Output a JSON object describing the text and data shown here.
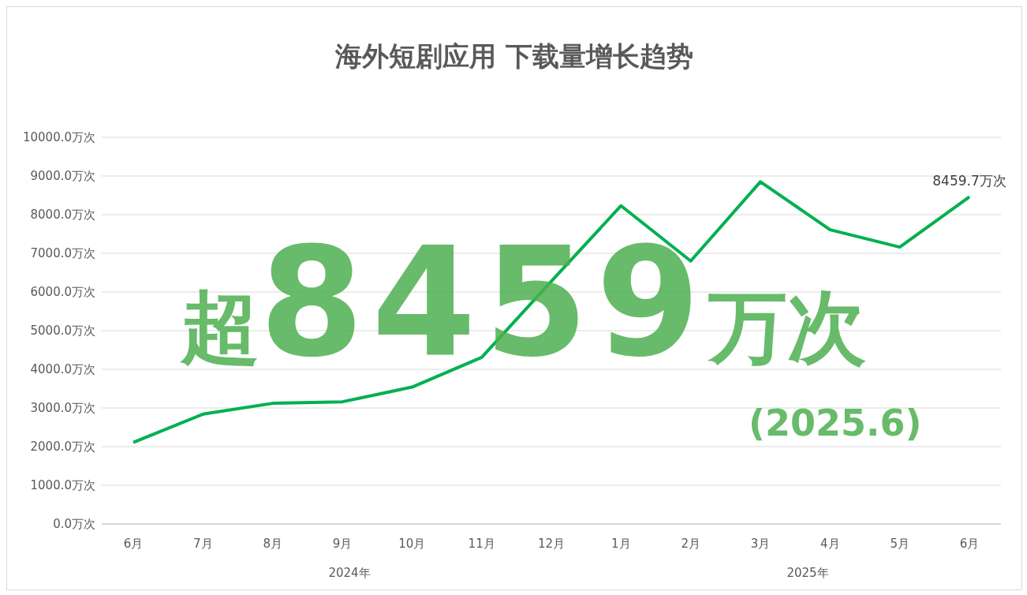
{
  "chart_data": {
    "type": "line",
    "title": "海外短剧应用 下载量增长趋势",
    "categories": [
      "6月",
      "7月",
      "8月",
      "9月",
      "10月",
      "11月",
      "12月",
      "1月",
      "2月",
      "3月",
      "4月",
      "5月",
      "6月"
    ],
    "values": [
      2110,
      2840,
      3120,
      3160,
      3540,
      4310,
      6280,
      8230,
      6800,
      8850,
      7610,
      7160,
      8459.7
    ],
    "value_labels": [
      null,
      null,
      null,
      null,
      null,
      null,
      null,
      null,
      null,
      null,
      null,
      null,
      "8459.7万次"
    ],
    "color": "#00b050",
    "marker": "none",
    "line_style": "solid",
    "grid": "y",
    "legend": false,
    "ylim": [
      0,
      10000
    ],
    "yticks": [
      {
        "value": 0,
        "label": "0.0万次"
      },
      {
        "value": 1000,
        "label": "1000.0万次"
      },
      {
        "value": 2000,
        "label": "2000.0万次"
      },
      {
        "value": 3000,
        "label": "3000.0万次"
      },
      {
        "value": 4000,
        "label": "4000.0万次"
      },
      {
        "value": 5000,
        "label": "5000.0万次"
      },
      {
        "value": 6000,
        "label": "6000.0万次"
      },
      {
        "value": 7000,
        "label": "7000.0万次"
      },
      {
        "value": 8000,
        "label": "8000.0万次"
      },
      {
        "value": 9000,
        "label": "9000.0万次"
      },
      {
        "value": 10000,
        "label": "10000.0万次"
      }
    ],
    "annotations": [
      "2024年",
      "2025年",
      "超8459万次",
      "(2025.6)"
    ]
  }
}
